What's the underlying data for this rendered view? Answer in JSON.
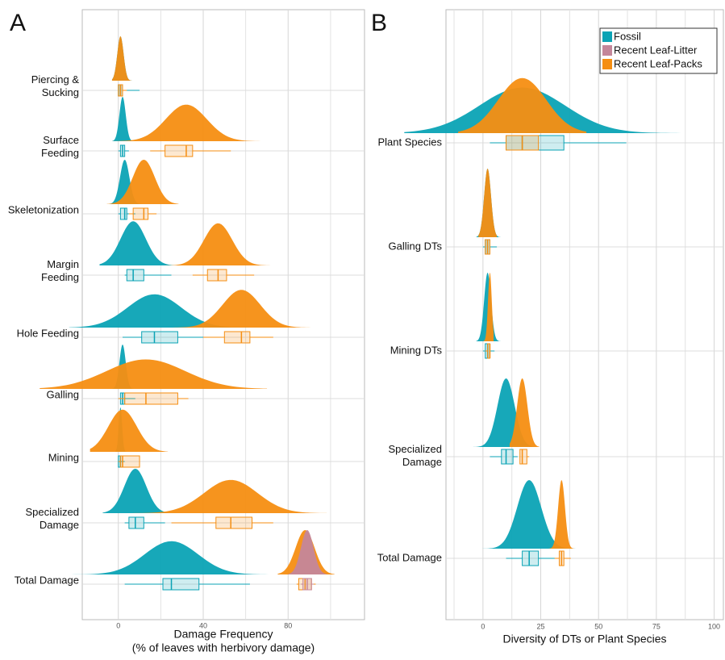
{
  "chart_data": [
    {
      "type": "raincloud",
      "label": "A",
      "categories": [
        "Piercing &\nSucking",
        "Surface\nFeeding",
        "Skeletonization",
        "Margin\nFeeding",
        "Hole Feeding",
        "Galling",
        "Mining",
        "Specialized\nDamage",
        "Total Damage"
      ],
      "series": [
        {
          "name": "Fossil",
          "color": "#0ba3b5",
          "boxes": [
            [
              0,
              0,
              1,
              2,
              10
            ],
            [
              0,
              1,
              2,
              3,
              5
            ],
            [
              0,
              1,
              3,
              4,
              8
            ],
            [
              3,
              4,
              7,
              12,
              25
            ],
            [
              2,
              11,
              17,
              28,
              45
            ],
            [
              0,
              1,
              2,
              3,
              8
            ],
            [
              0,
              0,
              1,
              1,
              3
            ],
            [
              3,
              5,
              8,
              12,
              22
            ],
            [
              3,
              21,
              25,
              38,
              62
            ]
          ]
        },
        {
          "name": "Recent Leaf-Packs",
          "color": "#f58e12",
          "boxes": [
            [
              0,
              0,
              1,
              2,
              4
            ],
            [
              15,
              22,
              32,
              35,
              53
            ],
            [
              5,
              7,
              12,
              14,
              18
            ],
            [
              35,
              42,
              47,
              51,
              64
            ],
            [
              40,
              50,
              58,
              62,
              73
            ],
            [
              0,
              3,
              13,
              28,
              33
            ],
            [
              0,
              1,
              2,
              10,
              10
            ],
            [
              25,
              46,
              53,
              63,
              73
            ],
            [
              84,
              85,
              88,
              91,
              93
            ]
          ]
        },
        {
          "name": "Recent Leaf-Litter",
          "color": "#c4869a",
          "boxes": [
            null,
            null,
            null,
            null,
            null,
            null,
            null,
            null,
            [
              86,
              87,
              89,
              91,
              92
            ]
          ]
        }
      ],
      "xlim": [
        -17,
        116
      ],
      "xticks": [
        0,
        40,
        80
      ],
      "minor_xticks": [
        20,
        60,
        100
      ],
      "xlabel": [
        "Damage Frequency",
        "(% of leaves with herbivory damage)"
      ]
    },
    {
      "type": "raincloud",
      "label": "B",
      "categories": [
        "Plant Species",
        "Galling DTs",
        "Mining DTs",
        "Specialized\nDamage",
        "Total Damage"
      ],
      "series": [
        {
          "name": "Fossil",
          "color": "#0ba3b5",
          "boxes": [
            [
              3,
              10,
              17,
              35,
              62
            ],
            [
              0,
              1,
              2,
              3,
              6
            ],
            [
              0,
              1,
              2,
              3,
              5
            ],
            [
              3,
              8,
              10,
              13,
              15
            ],
            [
              10,
              17,
              20,
              24,
              32
            ]
          ]
        },
        {
          "name": "Recent Leaf-Litter",
          "color": "#c4869a",
          "boxes": [
            null,
            null,
            null,
            null,
            null
          ]
        },
        {
          "name": "Recent Leaf-Packs",
          "color": "#f58e12",
          "boxes": [
            [
              10,
              10,
              17,
              24,
              24
            ],
            [
              1,
              1,
              2,
              3,
              3
            ],
            [
              1,
              2,
              3,
              3,
              3
            ],
            [
              16,
              16,
              17,
              19,
              20
            ],
            [
              31,
              33,
              34,
              35,
              38
            ]
          ]
        }
      ],
      "xlim": [
        -16,
        104
      ],
      "xticks": [
        0,
        25,
        50,
        75,
        100
      ],
      "minor_xticks": [
        -12.5,
        12.5,
        37.5,
        62.5,
        87.5
      ],
      "xlabel": [
        "Diversity of DTs or Plant Species"
      ],
      "legend": "top-right"
    }
  ]
}
